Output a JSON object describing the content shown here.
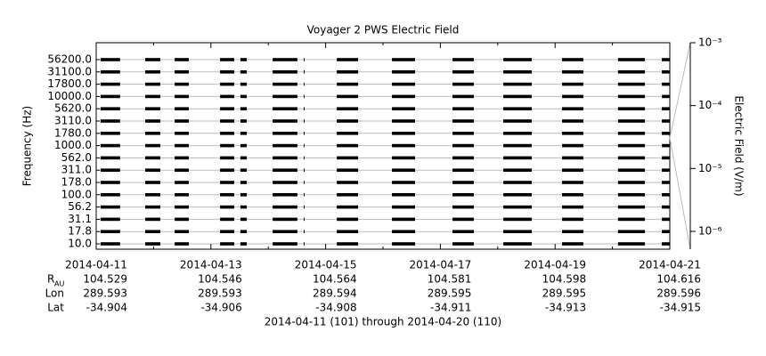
{
  "chart_data": {
    "type": "channel-strips",
    "title": "Voyager 2 PWS Electric Field",
    "y_label": "Frequency (Hz)",
    "y2_label": "Electric Field (V/m)",
    "categories": [
      "56200.0",
      "31100.0",
      "17800.0",
      "10000.0",
      "5620.0",
      "3110.0",
      "1780.0",
      "1000.0",
      "562.0",
      "311.0",
      "178.0",
      "100.0",
      "56.2",
      "31.1",
      "17.8",
      "10.0"
    ],
    "color": "#000000",
    "segments": [
      [
        "2014-04-11T01:50",
        "2014-04-11T10:00"
      ],
      [
        "2014-04-11T20:30",
        "2014-04-12T02:50"
      ],
      [
        "2014-04-12T08:50",
        "2014-04-12T14:45"
      ],
      [
        "2014-04-13T03:50",
        "2014-04-13T09:45"
      ],
      [
        "2014-04-13T12:20",
        "2014-04-13T15:00"
      ],
      [
        "2014-04-14T01:50",
        "2014-04-14T12:10"
      ],
      [
        "2014-04-14T14:50",
        "2014-04-14T15:10"
      ],
      [
        "2014-04-15T04:40",
        "2014-04-15T13:35"
      ],
      [
        "2014-04-16T03:45",
        "2014-04-16T13:25"
      ],
      [
        "2014-04-17T05:05",
        "2014-04-17T14:00"
      ],
      [
        "2014-04-18T02:20",
        "2014-04-18T14:15"
      ],
      [
        "2014-04-19T02:55",
        "2014-04-19T11:50"
      ],
      [
        "2014-04-20T02:20",
        "2014-04-20T13:35"
      ],
      [
        "2014-04-20T20:40",
        "2014-04-21T00:00"
      ]
    ],
    "xlim": [
      "2014-04-11",
      "2014-04-21"
    ],
    "xticks": [
      "2014-04-11",
      "2014-04-13",
      "2014-04-15",
      "2014-04-17",
      "2014-04-19",
      "2014-04-21"
    ],
    "xminorticks": [
      "2014-04-12",
      "2014-04-14",
      "2014-04-16",
      "2014-04-18",
      "2014-04-20"
    ],
    "y2lim": [
      5.2e-07,
      0.001
    ],
    "y2scale": "log",
    "y2ticks": [
      {
        "value": 0.001,
        "label": "10⁻³"
      },
      {
        "value": 0.0001,
        "label": "10⁻⁴"
      },
      {
        "value": 1e-05,
        "label": "10⁻⁵"
      },
      {
        "value": 1e-06,
        "label": "10⁻⁶"
      }
    ],
    "ephemeris_labels": [
      "R",
      "Lon",
      "Lat"
    ],
    "ephemeris_sub": "AU",
    "ephemeris": [
      [
        104.529,
        104.546,
        104.564,
        104.581,
        104.598,
        104.616
      ],
      [
        289.593,
        289.593,
        289.594,
        289.595,
        289.595,
        289.596
      ],
      [
        -34.904,
        -34.906,
        -34.908,
        -34.911,
        -34.913,
        -34.915
      ]
    ],
    "footer": "2014-04-11 (101) through 2014-04-20 (110)"
  }
}
